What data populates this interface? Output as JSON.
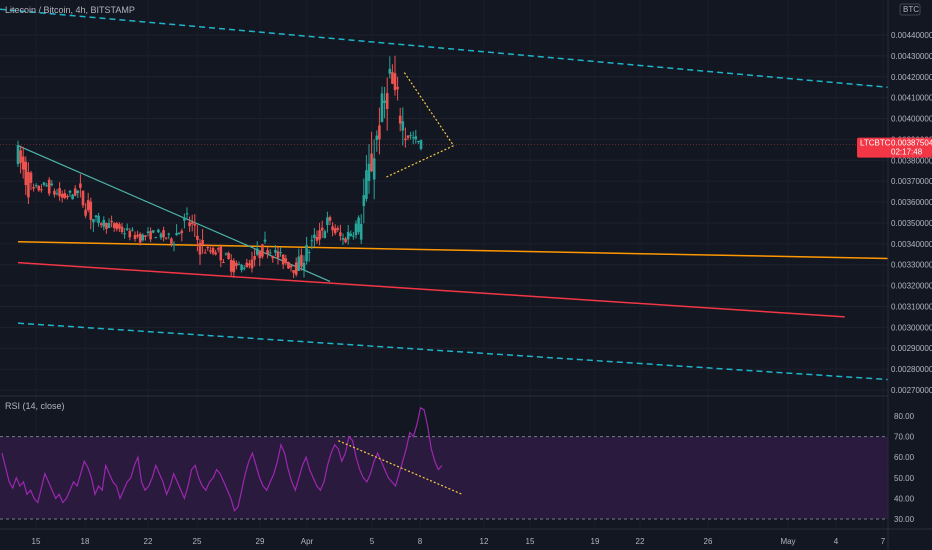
{
  "header": {
    "symbol_line": "Litecoin / Bitcoin, 4h, BITSTAMP"
  },
  "rsi": {
    "label": "RSI (14, close)"
  },
  "price_badge": {
    "symbol": "LTCBTC",
    "price": "0.00387504",
    "countdown": "02:17:48"
  },
  "currency_badge": "BTC",
  "colors": {
    "background": "#131722",
    "up": "#26a69a",
    "down": "#ef5350",
    "rsi_line": "#9c27b0",
    "rsi_band": "#2a1a3d",
    "dashed_channel": "#1fb5c9",
    "support_orange": "#ff9800",
    "support_red": "#f23645",
    "trendline_teal": "#4db6ac",
    "pattern_yellow": "#f7c948"
  },
  "chart_data": [
    {
      "type": "candlestick",
      "title": "Litecoin / Bitcoin, 4h, BITSTAMP",
      "ylim": [
        0.00274,
        0.00456
      ],
      "y_ticks": [
        "0.00440000",
        "0.00430000",
        "0.00420000",
        "0.00410000",
        "0.00400000",
        "0.00390000",
        "0.00380000",
        "0.00370000",
        "0.00360000",
        "0.00350000",
        "0.00340000",
        "0.00330000",
        "0.00320000",
        "0.00310000",
        "0.00300000",
        "0.00290000",
        "0.00280000",
        "0.00270000"
      ],
      "x_tick_labels": [
        "15",
        "18",
        "22",
        "25",
        "29",
        "Apr",
        "5",
        "8",
        "12",
        "15",
        "19",
        "22",
        "26",
        "May",
        "4",
        "7"
      ],
      "last_price": 0.00387504,
      "ohlc_close_path": [
        [
          "Mar 13",
          0.00385
        ],
        [
          "Mar 14",
          0.00365
        ],
        [
          "Mar 15",
          0.00368
        ],
        [
          "Mar 16",
          0.00362
        ],
        [
          "Mar 17",
          0.00365
        ],
        [
          "Mar 18",
          0.00352
        ],
        [
          "Mar 19",
          0.00349
        ],
        [
          "Mar 20",
          0.00346
        ],
        [
          "Mar 21",
          0.00343
        ],
        [
          "Mar 22",
          0.00345
        ],
        [
          "Mar 23",
          0.00342
        ],
        [
          "Mar 24",
          0.00352
        ],
        [
          "Mar 25",
          0.00337
        ],
        [
          "Mar 26",
          0.00336
        ],
        [
          "Mar 27",
          0.00329
        ],
        [
          "Mar 28",
          0.0033
        ],
        [
          "Mar 29",
          0.00339
        ],
        [
          "Mar 30",
          0.00333
        ],
        [
          "Mar 31",
          0.00328
        ],
        [
          "Apr 1",
          0.0034
        ],
        [
          "Apr 2",
          0.0035
        ],
        [
          "Apr 3",
          0.00342
        ],
        [
          "Apr 4",
          0.0035
        ],
        [
          "Apr 5",
          0.00385
        ],
        [
          "Apr 6",
          0.0042
        ],
        [
          "Apr 7",
          0.00393
        ],
        [
          "Apr 8",
          0.00387504
        ]
      ],
      "trendlines": [
        {
          "name": "upper dashed channel",
          "style": "dashed",
          "from": [
            "Mar 10",
            0.00454
          ],
          "to": [
            "May 8",
            0.00415
          ]
        },
        {
          "name": "lower dashed channel",
          "style": "dashed",
          "from": [
            "Mar 13",
            0.00302
          ],
          "to": [
            "May 8",
            0.00275
          ]
        },
        {
          "name": "orange support",
          "style": "solid",
          "from": [
            "Mar 13",
            0.00341
          ],
          "to": [
            "May 8",
            0.00333
          ]
        },
        {
          "name": "red support",
          "style": "solid",
          "from": [
            "Mar 13",
            0.00331
          ],
          "to": [
            "May 5",
            0.00305
          ]
        },
        {
          "name": "descending trendline",
          "style": "solid",
          "from": [
            "Mar 13",
            0.00387
          ],
          "to": [
            "Apr 2",
            0.00322
          ]
        }
      ],
      "pattern": {
        "name": "pennant",
        "apex": [
          "Apr 8",
          0.00387
        ],
        "upper_start": [
          "Apr 6",
          0.00422
        ],
        "lower_start": [
          "Apr 6",
          0.00372
        ]
      }
    },
    {
      "type": "line",
      "title": "RSI (14, close)",
      "ylim": [
        28,
        88
      ],
      "y_ticks": [
        "80.00",
        "70.00",
        "60.00",
        "50.00",
        "40.00",
        "30.00"
      ],
      "band": [
        30,
        70
      ],
      "values": [
        62,
        55,
        48,
        45,
        50,
        46,
        48,
        42,
        44,
        40,
        38,
        45,
        52,
        48,
        44,
        40,
        42,
        38,
        40,
        44,
        48,
        46,
        52,
        58,
        55,
        50,
        42,
        46,
        44,
        56,
        52,
        48,
        46,
        40,
        44,
        48,
        50,
        56,
        60,
        48,
        44,
        46,
        50,
        56,
        52,
        48,
        42,
        46,
        52,
        48,
        44,
        40,
        46,
        54,
        56,
        50,
        46,
        44,
        48,
        50,
        54,
        52,
        48,
        44,
        40,
        34,
        36,
        44,
        52,
        58,
        62,
        56,
        50,
        46,
        44,
        48,
        52,
        58,
        66,
        62,
        54,
        48,
        44,
        50,
        56,
        60,
        54,
        50,
        46,
        44,
        48,
        56,
        62,
        66,
        64,
        58,
        62,
        70,
        68,
        60,
        54,
        50,
        48,
        52,
        58,
        62,
        58,
        54,
        50,
        48,
        46,
        52,
        58,
        64,
        72,
        70,
        76,
        84,
        83,
        75,
        64,
        58,
        54,
        56
      ],
      "divergence_line": {
        "from_index": 108,
        "from": 68,
        "to_index": 123,
        "to": 44
      }
    }
  ]
}
